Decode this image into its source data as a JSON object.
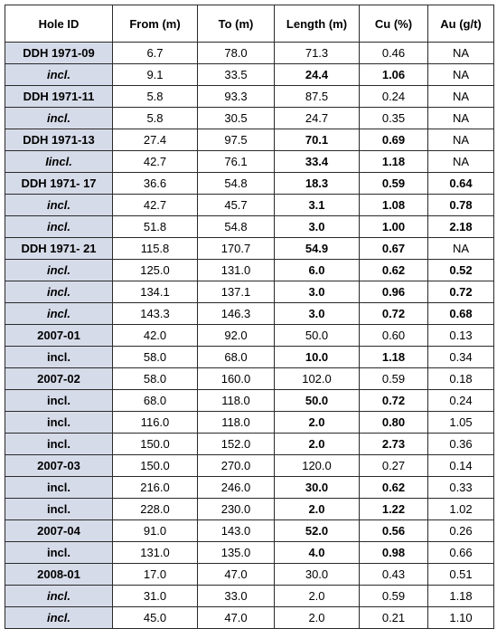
{
  "table": {
    "headers": [
      "Hole ID",
      "From (m)",
      "To (m)",
      "Length (m)",
      "Cu (%)",
      "Au (g/t)"
    ],
    "rows": [
      {
        "id": "DDH 1971-09",
        "from": "6.7",
        "to": "78.0",
        "length": "71.3",
        "cu": "0.46",
        "au": "NA",
        "idStyle": "b",
        "valBold": [
          false,
          false,
          false,
          false,
          false
        ]
      },
      {
        "id": "incl.",
        "from": "9.1",
        "to": "33.5",
        "length": "24.4",
        "cu": "1.06",
        "au": "NA",
        "idStyle": "bi",
        "valBold": [
          false,
          false,
          true,
          true,
          false
        ]
      },
      {
        "id": "DDH 1971-11",
        "from": "5.8",
        "to": "93.3",
        "length": "87.5",
        "cu": "0.24",
        "au": "NA",
        "idStyle": "b",
        "valBold": [
          false,
          false,
          false,
          false,
          false
        ]
      },
      {
        "id": "incl.",
        "from": "5.8",
        "to": "30.5",
        "length": "24.7",
        "cu": "0.35",
        "au": "NA",
        "idStyle": "bi",
        "valBold": [
          false,
          false,
          false,
          false,
          false
        ]
      },
      {
        "id": "DDH 1971-13",
        "from": "27.4",
        "to": "97.5",
        "length": "70.1",
        "cu": "0.69",
        "au": "NA",
        "idStyle": "b",
        "valBold": [
          false,
          false,
          true,
          true,
          false
        ]
      },
      {
        "id": "Iincl.",
        "from": "42.7",
        "to": "76.1",
        "length": "33.4",
        "cu": "1.18",
        "au": "NA",
        "idStyle": "bi",
        "valBold": [
          false,
          false,
          true,
          true,
          false
        ]
      },
      {
        "id": "DDH 1971- 17",
        "from": "36.6",
        "to": "54.8",
        "length": "18.3",
        "cu": "0.59",
        "au": "0.64",
        "idStyle": "b",
        "valBold": [
          false,
          false,
          true,
          true,
          true
        ]
      },
      {
        "id": "incl.",
        "from": "42.7",
        "to": "45.7",
        "length": "3.1",
        "cu": "1.08",
        "au": "0.78",
        "idStyle": "bi",
        "valBold": [
          false,
          false,
          true,
          true,
          true
        ]
      },
      {
        "id": "incl.",
        "from": "51.8",
        "to": "54.8",
        "length": "3.0",
        "cu": "1.00",
        "au": "2.18",
        "idStyle": "bi",
        "valBold": [
          false,
          false,
          true,
          true,
          true
        ]
      },
      {
        "id": "DDH 1971- 21",
        "from": "115.8",
        "to": "170.7",
        "length": "54.9",
        "cu": "0.67",
        "au": "NA",
        "idStyle": "b",
        "valBold": [
          false,
          false,
          true,
          true,
          false
        ]
      },
      {
        "id": "incl.",
        "from": "125.0",
        "to": "131.0",
        "length": "6.0",
        "cu": "0.62",
        "au": "0.52",
        "idStyle": "bi",
        "valBold": [
          false,
          false,
          true,
          true,
          true
        ]
      },
      {
        "id": "incl.",
        "from": "134.1",
        "to": "137.1",
        "length": "3.0",
        "cu": "0.96",
        "au": "0.72",
        "idStyle": "bi",
        "valBold": [
          false,
          false,
          true,
          true,
          true
        ]
      },
      {
        "id": "incl.",
        "from": "143.3",
        "to": "146.3",
        "length": "3.0",
        "cu": "0.72",
        "au": "0.68",
        "idStyle": "bi",
        "valBold": [
          false,
          false,
          true,
          true,
          true
        ]
      },
      {
        "id": "2007-01",
        "from": "42.0",
        "to": "92.0",
        "length": "50.0",
        "cu": "0.60",
        "au": "0.13",
        "idStyle": "b",
        "valBold": [
          false,
          false,
          false,
          false,
          false
        ]
      },
      {
        "id": "incl.",
        "from": "58.0",
        "to": "68.0",
        "length": "10.0",
        "cu": "1.18",
        "au": "0.34",
        "idStyle": "b",
        "valBold": [
          false,
          false,
          true,
          true,
          false
        ]
      },
      {
        "id": "2007-02",
        "from": "58.0",
        "to": "160.0",
        "length": "102.0",
        "cu": "0.59",
        "au": "0.18",
        "idStyle": "b",
        "valBold": [
          false,
          false,
          false,
          false,
          false
        ]
      },
      {
        "id": "incl.",
        "from": "68.0",
        "to": "118.0",
        "length": "50.0",
        "cu": "0.72",
        "au": "0.24",
        "idStyle": "b",
        "valBold": [
          false,
          false,
          true,
          true,
          false
        ]
      },
      {
        "id": "incl.",
        "from": "116.0",
        "to": "118.0",
        "length": "2.0",
        "cu": "0.80",
        "au": "1.05",
        "idStyle": "b",
        "valBold": [
          false,
          false,
          true,
          true,
          false
        ]
      },
      {
        "id": "incl.",
        "from": "150.0",
        "to": "152.0",
        "length": "2.0",
        "cu": "2.73",
        "au": "0.36",
        "idStyle": "b",
        "valBold": [
          false,
          false,
          true,
          true,
          false
        ]
      },
      {
        "id": "2007-03",
        "from": "150.0",
        "to": "270.0",
        "length": "120.0",
        "cu": "0.27",
        "au": "0.14",
        "idStyle": "b",
        "valBold": [
          false,
          false,
          false,
          false,
          false
        ]
      },
      {
        "id": "incl.",
        "from": "216.0",
        "to": "246.0",
        "length": "30.0",
        "cu": "0.62",
        "au": "0.33",
        "idStyle": "b",
        "valBold": [
          false,
          false,
          true,
          true,
          false
        ]
      },
      {
        "id": "incl.",
        "from": "228.0",
        "to": "230.0",
        "length": "2.0",
        "cu": "1.22",
        "au": "1.02",
        "idStyle": "b",
        "valBold": [
          false,
          false,
          true,
          true,
          false
        ]
      },
      {
        "id": "2007-04",
        "from": "91.0",
        "to": "143.0",
        "length": "52.0",
        "cu": "0.56",
        "au": "0.26",
        "idStyle": "b",
        "valBold": [
          false,
          false,
          true,
          true,
          false
        ]
      },
      {
        "id": "incl.",
        "from": "131.0",
        "to": "135.0",
        "length": "4.0",
        "cu": "0.98",
        "au": "0.66",
        "idStyle": "b",
        "valBold": [
          false,
          false,
          true,
          true,
          false
        ]
      },
      {
        "id": "2008-01",
        "from": "17.0",
        "to": "47.0",
        "length": "30.0",
        "cu": "0.43",
        "au": "0.51",
        "idStyle": "b",
        "valBold": [
          false,
          false,
          false,
          false,
          false
        ]
      },
      {
        "id": "incl.",
        "from": "31.0",
        "to": "33.0",
        "length": "2.0",
        "cu": "0.59",
        "au": "1.18",
        "idStyle": "bi",
        "valBold": [
          false,
          false,
          false,
          false,
          false
        ]
      },
      {
        "id": "incl.",
        "from": "45.0",
        "to": "47.0",
        "length": "2.0",
        "cu": "0.21",
        "au": "1.10",
        "idStyle": "bi",
        "valBold": [
          false,
          false,
          false,
          false,
          false
        ]
      }
    ]
  },
  "colors": {
    "id_cell_bg": "#d6dbe9",
    "border": "#2a2a2a"
  }
}
